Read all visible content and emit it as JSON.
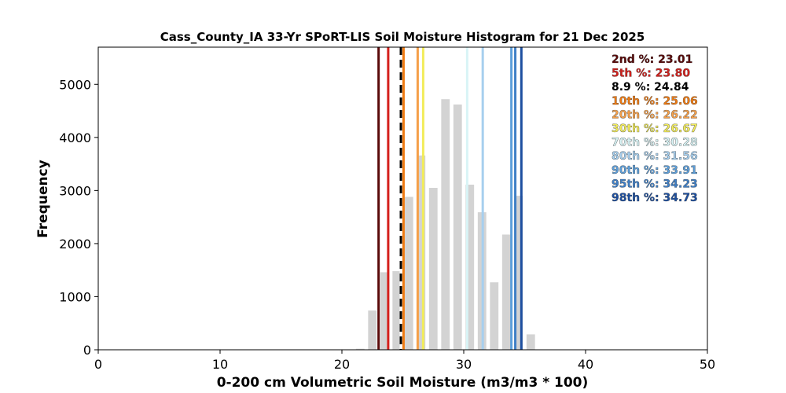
{
  "chart_data": {
    "type": "bar",
    "title": "Cass_County_IA 33-Yr SPoRT-LIS Soil Moisture Histogram for 21 Dec 2025",
    "xlabel": "0-200 cm Volumetric Soil Moisture (m3/m3 * 100)",
    "ylabel": "Frequency",
    "xlim": [
      0,
      50
    ],
    "ylim": [
      0,
      5700
    ],
    "xticks": [
      "0",
      "10",
      "20",
      "30",
      "40",
      "50"
    ],
    "yticks": [
      "0",
      "1000",
      "2000",
      "3000",
      "4000",
      "5000"
    ],
    "grid": false,
    "bar_color": "#d3d3d3",
    "histogram": {
      "bin_centers": [
        21.5,
        22.5,
        23.5,
        24.5,
        25.5,
        26.5,
        27.5,
        28.5,
        29.5,
        30.5,
        31.5,
        32.5,
        33.5,
        34.5,
        35.5
      ],
      "counts": [
        20,
        740,
        1460,
        1480,
        2880,
        3660,
        3050,
        4720,
        4620,
        3110,
        2590,
        1270,
        2170,
        2900,
        290
      ]
    },
    "percentile_lines": [
      {
        "label": "2nd %: 23.01",
        "value": 23.01,
        "color": "#5a0a0a",
        "dashed": false
      },
      {
        "label": "5th %: 23.80",
        "value": 23.8,
        "color": "#d4201c",
        "dashed": false
      },
      {
        "label": "8.9 %: 24.84",
        "value": 24.84,
        "color": "#000000",
        "dashed": true
      },
      {
        "label": "10th %: 25.06",
        "value": 25.06,
        "color": "#f07b12",
        "dashed": false
      },
      {
        "label": "20th %: 26.22",
        "value": 26.22,
        "color": "#f5a04a",
        "dashed": false
      },
      {
        "label": "30th %: 26.67",
        "value": 26.67,
        "color": "#f2ec5a",
        "dashed": false
      },
      {
        "label": "70th %: 30.28",
        "value": 30.28,
        "color": "#d8f4f6",
        "dashed": false
      },
      {
        "label": "80th %: 31.56",
        "value": 31.56,
        "color": "#a7cfee",
        "dashed": false
      },
      {
        "label": "90th %: 33.91",
        "value": 33.91,
        "color": "#5d9fda",
        "dashed": false
      },
      {
        "label": "95th %: 34.23",
        "value": 34.23,
        "color": "#3f7fc6",
        "dashed": false
      },
      {
        "label": "98th %: 34.73",
        "value": 34.73,
        "color": "#1d4fa0",
        "dashed": false
      }
    ],
    "legend_placement": "top-right"
  }
}
